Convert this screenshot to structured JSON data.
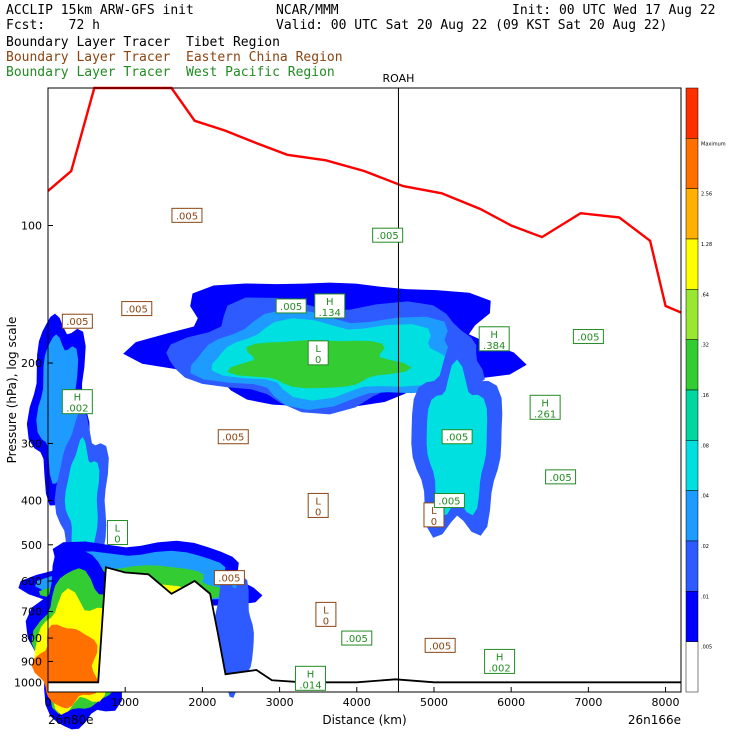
{
  "header": {
    "model": "ACCLIP 15km ARW-GFS init",
    "center": "NCAR/MMM",
    "init": "Init: 00 UTC Wed 17 Aug 22",
    "fcst": "Fcst:   72 h",
    "valid": "Valid: 00 UTC Sat 20 Aug 22 (09 KST Sat 20 Aug 22)"
  },
  "legend": [
    {
      "label": "Boundary Layer Tracer  Tibet Region",
      "color": "#000000"
    },
    {
      "label": "Boundary Layer Tracer  Eastern China Region",
      "color": "#8b4513"
    },
    {
      "label": "Boundary Layer Tracer  West Pacific Region",
      "color": "#228b22"
    }
  ],
  "chart_data": {
    "type": "cross-section",
    "ylabel": "Pressure (hPa), log scale",
    "xlabel": "Distance (km)",
    "x_left_label": "26n80e",
    "x_right_label": "26n166e",
    "station_label": "ROAH",
    "station_x_km": 4540,
    "xlim": [
      0,
      8200
    ],
    "ylim": [
      1050,
      50
    ],
    "y_log": true,
    "x_ticks": [
      0,
      1000,
      2000,
      3000,
      4000,
      5000,
      6000,
      7000,
      8000
    ],
    "y_ticks": [
      100,
      200,
      300,
      400,
      500,
      600,
      700,
      800,
      900,
      1000
    ],
    "colorbar": {
      "levels": [
        ".005",
        ".01",
        ".02",
        ".04",
        ".08",
        ".16",
        ".32",
        ".64",
        "1.28",
        "2.56",
        "Maximum"
      ],
      "colors": [
        "#ffffff",
        "#0000ff",
        "#2e5bff",
        "#1e9bff",
        "#00e0e0",
        "#00d6a0",
        "#33cc33",
        "#99e633",
        "#ffff00",
        "#ffb000",
        "#ff7000",
        "#ff3000"
      ]
    },
    "tropopause_color": "#ff0000",
    "tropopause_hpa": [
      {
        "x": 0,
        "p": 84
      },
      {
        "x": 300,
        "p": 76
      },
      {
        "x": 600,
        "p": 50
      },
      {
        "x": 800,
        "p": 50
      },
      {
        "x": 1200,
        "p": 50
      },
      {
        "x": 1600,
        "p": 50
      },
      {
        "x": 1900,
        "p": 59
      },
      {
        "x": 2300,
        "p": 62
      },
      {
        "x": 2700,
        "p": 66
      },
      {
        "x": 3100,
        "p": 70
      },
      {
        "x": 3600,
        "p": 72
      },
      {
        "x": 4100,
        "p": 76
      },
      {
        "x": 4600,
        "p": 82
      },
      {
        "x": 5100,
        "p": 85
      },
      {
        "x": 5600,
        "p": 92
      },
      {
        "x": 6000,
        "p": 100
      },
      {
        "x": 6400,
        "p": 106
      },
      {
        "x": 6900,
        "p": 94
      },
      {
        "x": 7400,
        "p": 96
      },
      {
        "x": 7800,
        "p": 108
      },
      {
        "x": 8000,
        "p": 150
      },
      {
        "x": 8200,
        "p": 155
      }
    ],
    "terrain_hpa": [
      {
        "x": 0,
        "p": 1000
      },
      {
        "x": 400,
        "p": 1000
      },
      {
        "x": 650,
        "p": 1000
      },
      {
        "x": 750,
        "p": 560
      },
      {
        "x": 1000,
        "p": 575
      },
      {
        "x": 1300,
        "p": 580
      },
      {
        "x": 1600,
        "p": 640
      },
      {
        "x": 1900,
        "p": 600
      },
      {
        "x": 2100,
        "p": 640
      },
      {
        "x": 2200,
        "p": 780
      },
      {
        "x": 2300,
        "p": 960
      },
      {
        "x": 2700,
        "p": 940
      },
      {
        "x": 2900,
        "p": 990
      },
      {
        "x": 3300,
        "p": 1000
      },
      {
        "x": 4000,
        "p": 1000
      },
      {
        "x": 4500,
        "p": 985
      },
      {
        "x": 5000,
        "p": 1000
      },
      {
        "x": 6000,
        "p": 1000
      },
      {
        "x": 7000,
        "p": 1000
      },
      {
        "x": 8200,
        "p": 1000
      }
    ],
    "labels": [
      {
        "text": ".005",
        "x": 380,
        "p": 162,
        "color": "#8b4513"
      },
      {
        "text": ".005",
        "x": 1150,
        "p": 152,
        "color": "#8b4513"
      },
      {
        "text": ".005",
        "x": 1800,
        "p": 95,
        "color": "#8b4513"
      },
      {
        "text": ".005",
        "x": 3150,
        "p": 150,
        "color": "#228b22"
      },
      {
        "text": ".005",
        "x": 4400,
        "p": 105,
        "color": "#228b22"
      },
      {
        "text": "H .134",
        "x": 3650,
        "p": 150,
        "color": "#228b22"
      },
      {
        "text": "H .002",
        "x": 380,
        "p": 243,
        "color": "#228b22"
      },
      {
        "text": ".005",
        "x": 2400,
        "p": 290,
        "color": "#8b4513"
      },
      {
        "text": "L 0",
        "x": 3500,
        "p": 190,
        "color": "#228b22"
      },
      {
        "text": "L 0",
        "x": 3500,
        "p": 410,
        "color": "#8b4513"
      },
      {
        "text": "L 0",
        "x": 5000,
        "p": 430,
        "color": "#8b4513"
      },
      {
        "text": ".005",
        "x": 5300,
        "p": 290,
        "color": "#228b22"
      },
      {
        "text": "H .384",
        "x": 5780,
        "p": 177,
        "color": "#228b22"
      },
      {
        "text": "H .261",
        "x": 6440,
        "p": 250,
        "color": "#228b22"
      },
      {
        "text": ".005",
        "x": 6640,
        "p": 355,
        "color": "#228b22"
      },
      {
        "text": ".005",
        "x": 7000,
        "p": 175,
        "color": "#228b22"
      },
      {
        "text": "L 0",
        "x": 900,
        "p": 470,
        "color": "#228b22"
      },
      {
        "text": ".005",
        "x": 2350,
        "p": 590,
        "color": "#8b4513"
      },
      {
        "text": "L 0",
        "x": 3600,
        "p": 710,
        "color": "#8b4513"
      },
      {
        "text": ".005",
        "x": 4000,
        "p": 800,
        "color": "#228b22"
      },
      {
        "text": ".005",
        "x": 5080,
        "p": 830,
        "color": "#8b4513"
      },
      {
        "text": "H .014",
        "x": 3400,
        "p": 980,
        "color": "#228b22"
      },
      {
        "text": "H .002",
        "x": 5850,
        "p": 900,
        "color": "#228b22"
      },
      {
        "text": ".005",
        "x": 5200,
        "p": 400,
        "color": "#228b22"
      }
    ]
  }
}
